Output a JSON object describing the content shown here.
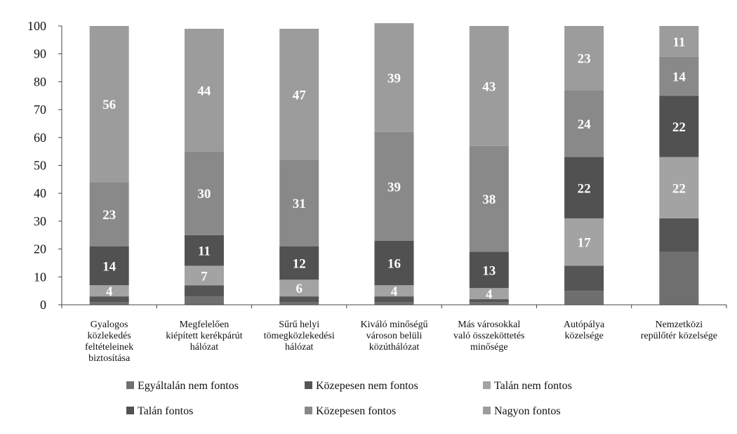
{
  "chart_data": {
    "type": "bar",
    "stacked": true,
    "title": "",
    "xlabel": "",
    "ylabel": "",
    "ylim": [
      0,
      100
    ],
    "yticks": [
      0,
      10,
      20,
      30,
      40,
      50,
      60,
      70,
      80,
      90,
      100
    ],
    "categories": [
      [
        "Gyalogos",
        "közlekedés",
        "feltételeinek",
        "biztosítása"
      ],
      [
        "Megfelelően",
        "kiépített kerékpárút",
        "hálózat"
      ],
      [
        "Sűrű helyi",
        "tömegközlekedési",
        "hálózat"
      ],
      [
        "Kiváló minőségű",
        "városon belüli",
        "közúthálózat"
      ],
      [
        "Más városokkal",
        "való összeköttetés",
        "minősége"
      ],
      [
        "Autópálya",
        "közelsége"
      ],
      [
        "Nemzetközi",
        "repülőtér közelsége"
      ]
    ],
    "series": [
      {
        "name": "Egyáltalán nem fontos",
        "color": "#6f6f6f",
        "values": [
          1,
          3,
          1,
          1,
          1,
          5,
          19
        ],
        "labels": [
          "",
          "",
          "",
          "",
          "",
          "",
          ""
        ]
      },
      {
        "name": "Közepesen nem fontos",
        "color": "#555555",
        "values": [
          2,
          4,
          2,
          2,
          1,
          9,
          12
        ],
        "labels": [
          "",
          "",
          "",
          "",
          "",
          "",
          ""
        ]
      },
      {
        "name": "Talán nem fontos",
        "color": "#a3a3a3",
        "values": [
          4,
          7,
          6,
          4,
          4,
          17,
          22
        ],
        "labels": [
          "4",
          "7",
          "6",
          "4",
          "4",
          "17",
          "22"
        ]
      },
      {
        "name": "Talán fontos",
        "color": "#515151",
        "values": [
          14,
          11,
          12,
          16,
          13,
          22,
          22
        ],
        "labels": [
          "14",
          "11",
          "12",
          "16",
          "13",
          "22",
          "22"
        ]
      },
      {
        "name": "Közepesen fontos",
        "color": "#898989",
        "values": [
          23,
          30,
          31,
          39,
          38,
          24,
          14
        ],
        "labels": [
          "23",
          "30",
          "31",
          "39",
          "38",
          "24",
          "14"
        ]
      },
      {
        "name": "Nagyon fontos",
        "color": "#9c9c9c",
        "values": [
          56,
          44,
          47,
          39,
          43,
          23,
          11
        ],
        "labels": [
          "56",
          "44",
          "47",
          "39",
          "43",
          "23",
          "11"
        ]
      }
    ],
    "legend": {
      "position": "bottom",
      "columns": 3
    }
  }
}
